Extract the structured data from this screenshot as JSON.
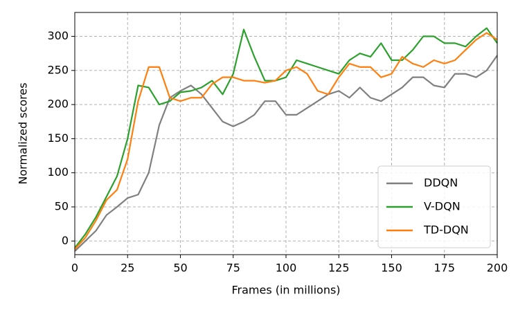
{
  "chart_data": {
    "type": "line",
    "xlabel": "Frames (in millions)",
    "ylabel": "Normalized scores",
    "x": [
      0,
      5,
      10,
      15,
      20,
      25,
      30,
      35,
      40,
      45,
      50,
      55,
      60,
      65,
      70,
      75,
      80,
      85,
      90,
      95,
      100,
      105,
      110,
      115,
      120,
      125,
      130,
      135,
      140,
      145,
      150,
      155,
      160,
      165,
      170,
      175,
      180,
      185,
      190,
      195,
      200
    ],
    "series": [
      {
        "name": "DDQN",
        "color": "#7f7f7f",
        "values": [
          -15,
          0,
          15,
          38,
          50,
          63,
          68,
          100,
          170,
          210,
          220,
          228,
          215,
          195,
          175,
          168,
          175,
          185,
          205,
          205,
          185,
          185,
          195,
          205,
          215,
          220,
          210,
          225,
          210,
          205,
          215,
          225,
          240,
          240,
          228,
          225,
          245,
          245,
          240,
          250,
          272
        ]
      },
      {
        "name": "V-DQN",
        "color": "#2ca02c",
        "values": [
          -10,
          10,
          35,
          65,
          95,
          150,
          228,
          225,
          200,
          205,
          218,
          220,
          225,
          235,
          215,
          245,
          310,
          270,
          235,
          235,
          240,
          265,
          260,
          255,
          250,
          245,
          265,
          275,
          270,
          290,
          265,
          265,
          280,
          300,
          300,
          290,
          290,
          285,
          300,
          312,
          290
        ]
      },
      {
        "name": "TD-DQN",
        "color": "#ff7f0e",
        "values": [
          -12,
          5,
          30,
          60,
          75,
          120,
          205,
          255,
          255,
          210,
          205,
          210,
          210,
          230,
          240,
          240,
          235,
          235,
          232,
          235,
          250,
          255,
          245,
          220,
          215,
          240,
          260,
          255,
          255,
          240,
          245,
          270,
          260,
          255,
          265,
          260,
          265,
          280,
          295,
          305,
          295
        ]
      }
    ],
    "xlim": [
      0,
      200
    ],
    "xticks": [
      0,
      25,
      50,
      75,
      100,
      125,
      150,
      175,
      200
    ],
    "ylim": [
      -20,
      335
    ],
    "yticks": [
      0,
      50,
      100,
      150,
      200,
      250,
      300
    ],
    "grid": true,
    "legend": "lower right"
  }
}
